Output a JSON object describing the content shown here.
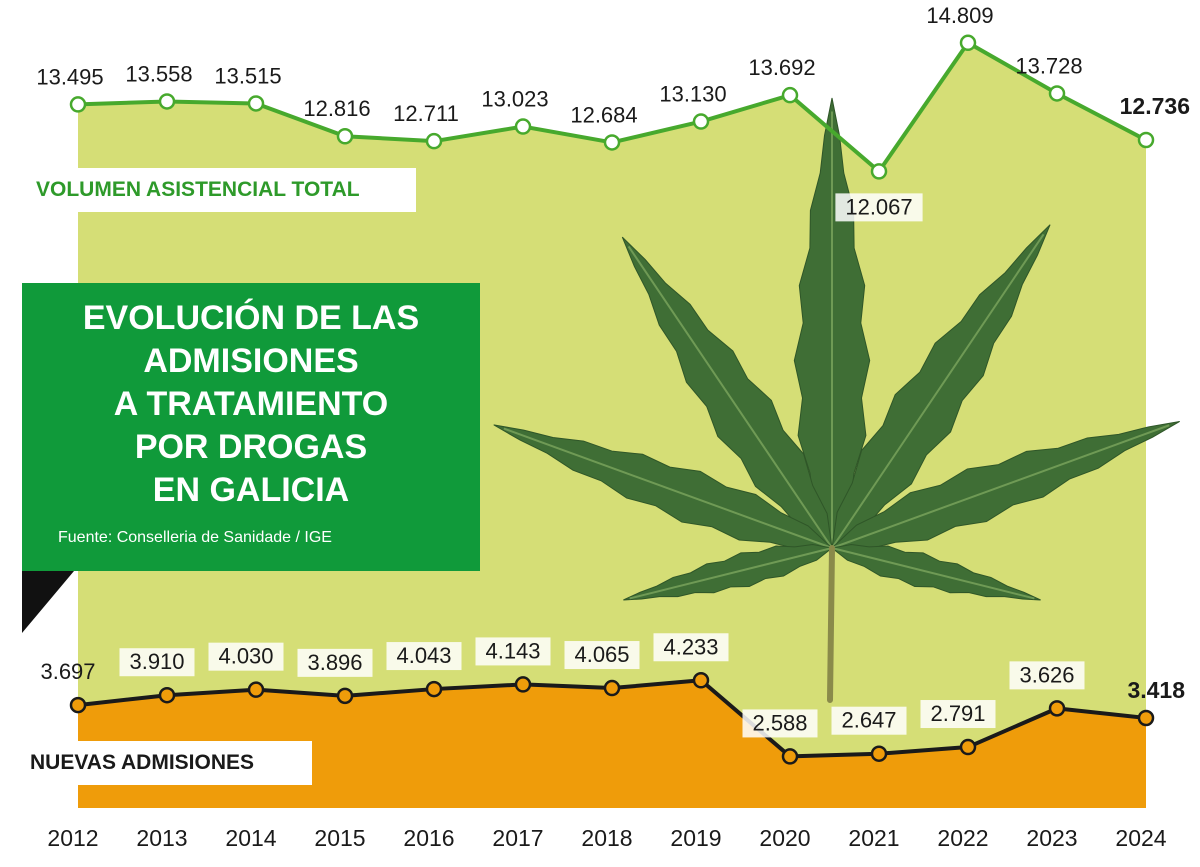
{
  "title": "EVOLUCIÓN DE LAS ADMISIONES A TRATAMIENTO POR DROGAS EN GALICIA",
  "title_lines": [
    "EVOLUCIÓN DE LAS",
    "ADMISIONES",
    "A TRATAMIENTO",
    "POR DROGAS",
    "EN GALICIA"
  ],
  "source": "Fuente: Conselleria de Sanidade / IGE",
  "colors": {
    "top_fill": "#d5de76",
    "top_line": "#47a92d",
    "bottom_fill": "#ef9c0a",
    "bottom_line": "#1a1a1a",
    "title_box": "#109a3a",
    "leaf_dark": "#3f6e35",
    "leaf_light": "#6f9a55"
  },
  "decoration": "cannabis-leaf-icon",
  "chart_data": {
    "type": "area",
    "categories": [
      "2012",
      "2013",
      "2014",
      "2015",
      "2016",
      "2017",
      "2018",
      "2019",
      "2020",
      "2021",
      "2022",
      "2023",
      "2024"
    ],
    "series": [
      {
        "name": "VOLUMEN ASISTENCIAL TOTAL",
        "values": [
          13495,
          13558,
          13515,
          12816,
          12711,
          13023,
          12684,
          13130,
          13692,
          12067,
          14809,
          13728,
          12736
        ],
        "labels": [
          "13.495",
          "13.558",
          "13.515",
          "12.816",
          "12.711",
          "13.023",
          "12.684",
          "13.130",
          "13.692",
          "12.067",
          "14.809",
          "13.728",
          "12.736"
        ]
      },
      {
        "name": "NUEVAS ADMISIONES",
        "values": [
          3697,
          3910,
          4030,
          3896,
          4043,
          4143,
          4065,
          4233,
          2588,
          2647,
          2791,
          3626,
          3418
        ],
        "labels": [
          "3.697",
          "3.910",
          "4.030",
          "3.896",
          "4.043",
          "4.143",
          "4.065",
          "4.233",
          "2.588",
          "2.647",
          "2.791",
          "3.626",
          "3.418"
        ]
      }
    ],
    "grid": false,
    "legend": "none"
  }
}
